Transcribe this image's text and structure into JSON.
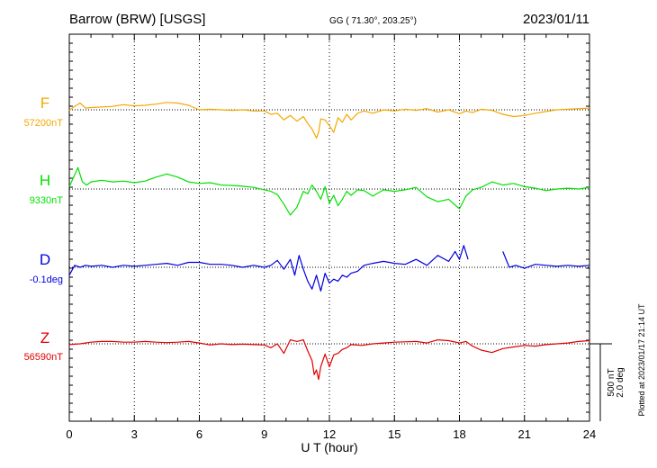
{
  "chart_data": {
    "type": "line",
    "header": {
      "station": "Barrow (BRW)  [USGS]",
      "coords": "GG ( 71.30°, 203.25°)",
      "date": "2023/01/11"
    },
    "xlabel": "U T (hour)",
    "xlim": [
      0,
      24
    ],
    "xticks": [
      "0",
      "3",
      "6",
      "9",
      "12",
      "15",
      "18",
      "21",
      "24"
    ],
    "scale_bar": {
      "line1": "500 nT",
      "line2": "2.0 deg"
    },
    "plotted_note": "Plotted at 2023/01/17 21:14 UT",
    "grid": true,
    "series": [
      {
        "name": "F",
        "baseline_label": "57200nT",
        "color": "#f5a800",
        "baseline_value": 57200,
        "unit": "nT",
        "ylim": [
          56900,
          57600
        ],
        "x": [
          0,
          0.25,
          0.5,
          0.75,
          1,
          1.5,
          2,
          2.5,
          3,
          3.5,
          4,
          4.5,
          5,
          5.5,
          6,
          6.5,
          7,
          7.5,
          8,
          8.5,
          9,
          9.3,
          9.6,
          9.9,
          10.2,
          10.5,
          10.8,
          11,
          11.2,
          11.4,
          11.5,
          11.6,
          11.8,
          12,
          12.2,
          12.4,
          12.6,
          12.8,
          13,
          13.3,
          13.6,
          14,
          14.5,
          15,
          15.5,
          16,
          16.5,
          17,
          17.5,
          18,
          18.3,
          18.6,
          19,
          19.5,
          20,
          20.5,
          21,
          21.5,
          22,
          22.5,
          23,
          23.5,
          24
        ],
        "values": [
          57195,
          57230,
          57260,
          57215,
          57220,
          57225,
          57230,
          57245,
          57235,
          57240,
          57250,
          57265,
          57260,
          57240,
          57200,
          57205,
          57200,
          57195,
          57200,
          57190,
          57190,
          57160,
          57170,
          57110,
          57150,
          57100,
          57140,
          57080,
          57030,
          56950,
          57000,
          57120,
          57110,
          57060,
          57000,
          57130,
          57090,
          57160,
          57110,
          57170,
          57190,
          57170,
          57200,
          57190,
          57205,
          57195,
          57210,
          57180,
          57200,
          57165,
          57190,
          57175,
          57205,
          57195,
          57160,
          57140,
          57150,
          57170,
          57185,
          57200,
          57205,
          57210,
          57215
        ]
      },
      {
        "name": "H",
        "baseline_label": "9330nT",
        "color": "#00e000",
        "baseline_value": 9330,
        "unit": "nT",
        "ylim": [
          8830,
          9830
        ],
        "x": [
          0,
          0.25,
          0.4,
          0.6,
          0.8,
          1,
          1.5,
          2,
          2.5,
          3,
          3.5,
          4,
          4.5,
          5,
          5.5,
          6,
          6.5,
          7,
          7.5,
          8,
          8.5,
          9,
          9.3,
          9.6,
          9.9,
          10.2,
          10.5,
          10.8,
          11,
          11.2,
          11.4,
          11.6,
          11.8,
          12,
          12.2,
          12.4,
          12.6,
          12.8,
          13,
          13.3,
          13.6,
          14,
          14.5,
          15,
          15.5,
          16,
          16.5,
          17,
          17.5,
          18,
          18.3,
          18.6,
          19,
          19.5,
          20,
          20.5,
          21,
          21.5,
          22,
          22.5,
          23,
          23.5,
          24
        ],
        "values": [
          9360,
          9510,
          9600,
          9420,
          9380,
          9420,
          9440,
          9420,
          9430,
          9410,
          9430,
          9480,
          9520,
          9480,
          9420,
          9400,
          9410,
          9380,
          9375,
          9365,
          9350,
          9320,
          9300,
          9260,
          9140,
          9000,
          9100,
          9300,
          9270,
          9380,
          9300,
          9200,
          9360,
          9150,
          9250,
          9120,
          9200,
          9300,
          9250,
          9320,
          9310,
          9240,
          9320,
          9300,
          9320,
          9350,
          9230,
          9170,
          9200,
          9080,
          9240,
          9320,
          9350,
          9420,
          9380,
          9400,
          9360,
          9340,
          9310,
          9330,
          9340,
          9330,
          9350
        ]
      },
      {
        "name": "D",
        "baseline_label": "-0.1deg",
        "color": "#0000e0",
        "baseline_value": -0.1,
        "unit": "deg",
        "ylim": [
          -2.1,
          1.9
        ],
        "x": [
          0,
          0.25,
          0.5,
          0.75,
          1,
          1.5,
          2,
          2.5,
          3,
          3.5,
          4,
          4.5,
          5,
          5.5,
          6,
          6.5,
          7,
          7.5,
          8,
          8.5,
          9,
          9.3,
          9.6,
          9.9,
          10.2,
          10.4,
          10.6,
          10.8,
          11,
          11.2,
          11.4,
          11.6,
          11.8,
          12,
          12.2,
          12.4,
          12.6,
          12.8,
          13,
          13.3,
          13.6,
          14,
          14.5,
          15,
          15.5,
          16,
          16.5,
          17,
          17.5,
          17.8,
          18,
          18.2,
          18.4
        ],
        "values": [
          -0.5,
          0.0,
          -0.1,
          0.0,
          -0.05,
          0.0,
          -0.1,
          0.0,
          -0.05,
          0.0,
          0.05,
          0.1,
          0.0,
          0.15,
          0.15,
          0.05,
          0.05,
          0.0,
          -0.1,
          0.0,
          -0.1,
          0.0,
          0.25,
          -0.2,
          0.3,
          -0.5,
          0.5,
          -0.2,
          -0.8,
          -1.2,
          -0.5,
          -1.3,
          -0.4,
          -0.9,
          -0.7,
          -0.8,
          -0.5,
          -0.6,
          -0.4,
          -0.3,
          0.0,
          0.1,
          0.2,
          0.1,
          0.05,
          0.3,
          0.0,
          0.5,
          0.2,
          0.7,
          0.3,
          1.0,
          0.3
        ],
        "x2": [
          20,
          20.3,
          20.6,
          21,
          21.5,
          22,
          22.5,
          23,
          23.5,
          24
        ],
        "values2": [
          0.7,
          -0.1,
          0.0,
          -0.15,
          0.05,
          0.0,
          -0.05,
          0.0,
          -0.05,
          0.0
        ]
      },
      {
        "name": "Z",
        "baseline_label": "56590nT",
        "color": "#e00000",
        "baseline_value": 56590,
        "unit": "nT",
        "ylim": [
          56090,
          57090
        ],
        "x": [
          0,
          0.5,
          1,
          1.5,
          2,
          2.5,
          3,
          3.5,
          4,
          4.5,
          5,
          5.5,
          6,
          6.5,
          7,
          7.5,
          8,
          8.5,
          9,
          9.3,
          9.6,
          9.9,
          10.2,
          10.5,
          10.8,
          11,
          11.2,
          11.3,
          11.4,
          11.5,
          11.6,
          11.8,
          12,
          12.2,
          12.4,
          12.6,
          12.8,
          13,
          13.5,
          14,
          14.5,
          15,
          15.5,
          16,
          16.5,
          17,
          17.5,
          18,
          18.3,
          18.6,
          19,
          19.5,
          20,
          20.5,
          21,
          21.5,
          22,
          22.5,
          23,
          23.5,
          24
        ],
        "values": [
          56580,
          56590,
          56610,
          56620,
          56620,
          56610,
          56610,
          56620,
          56610,
          56605,
          56610,
          56620,
          56600,
          56575,
          56590,
          56580,
          56585,
          56580,
          56575,
          56540,
          56590,
          56470,
          56640,
          56620,
          56640,
          56500,
          56380,
          56200,
          56260,
          56140,
          56300,
          56460,
          56300,
          56450,
          56470,
          56520,
          56540,
          56580,
          56570,
          56590,
          56600,
          56610,
          56615,
          56620,
          56600,
          56640,
          56630,
          56600,
          56620,
          56560,
          56510,
          56480,
          56530,
          56550,
          56570,
          56560,
          56580,
          56590,
          56600,
          56620,
          56630
        ]
      }
    ]
  }
}
